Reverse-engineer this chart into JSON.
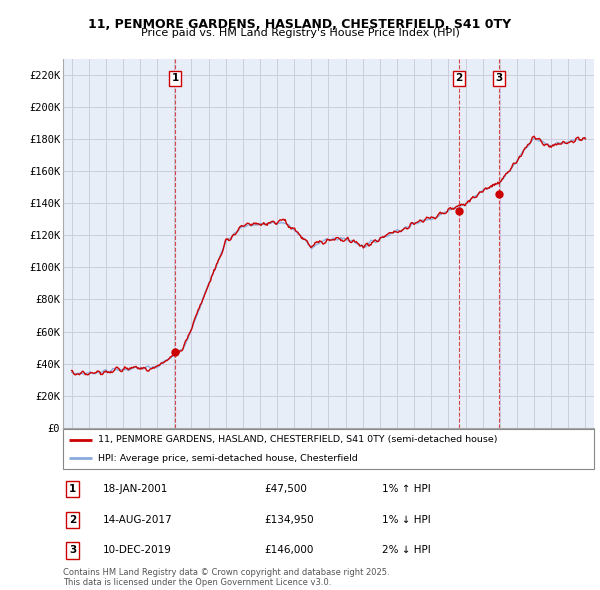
{
  "title1": "11, PENMORE GARDENS, HASLAND, CHESTERFIELD, S41 0TY",
  "title2": "Price paid vs. HM Land Registry's House Price Index (HPI)",
  "legend_line1": "11, PENMORE GARDENS, HASLAND, CHESTERFIELD, S41 0TY (semi-detached house)",
  "legend_line2": "HPI: Average price, semi-detached house, Chesterfield",
  "footer": "Contains HM Land Registry data © Crown copyright and database right 2025.\nThis data is licensed under the Open Government Licence v3.0.",
  "sale_markers": [
    {
      "num": 1,
      "date": "18-JAN-2001",
      "price": "£47,500",
      "pct": "1%",
      "dir": "↑",
      "year": 2001.05
    },
    {
      "num": 2,
      "date": "14-AUG-2017",
      "price": "£134,950",
      "pct": "1%",
      "dir": "↓",
      "year": 2017.62
    },
    {
      "num": 3,
      "date": "10-DEC-2019",
      "price": "£146,000",
      "pct": "2%",
      "dir": "↓",
      "year": 2019.95
    }
  ],
  "red_line_color": "#cc0000",
  "blue_line_color": "#88aadd",
  "marker_box_color": "#cc0000",
  "vline_color": "#cc0000",
  "grid_color": "#ccccdd",
  "chart_bg": "#e8eef8",
  "background_color": "#ffffff",
  "ylim": [
    0,
    230000
  ],
  "xlim": [
    1994.5,
    2025.5
  ],
  "yticks": [
    0,
    20000,
    40000,
    60000,
    80000,
    100000,
    120000,
    140000,
    160000,
    180000,
    200000,
    220000
  ],
  "ytick_labels": [
    "£0",
    "£20K",
    "£40K",
    "£60K",
    "£80K",
    "£100K",
    "£120K",
    "£140K",
    "£160K",
    "£180K",
    "£200K",
    "£220K"
  ],
  "xticks": [
    1995,
    1996,
    1997,
    1998,
    1999,
    2000,
    2001,
    2002,
    2003,
    2004,
    2005,
    2006,
    2007,
    2008,
    2009,
    2010,
    2011,
    2012,
    2013,
    2014,
    2015,
    2016,
    2017,
    2018,
    2019,
    2020,
    2021,
    2022,
    2023,
    2024,
    2025
  ]
}
